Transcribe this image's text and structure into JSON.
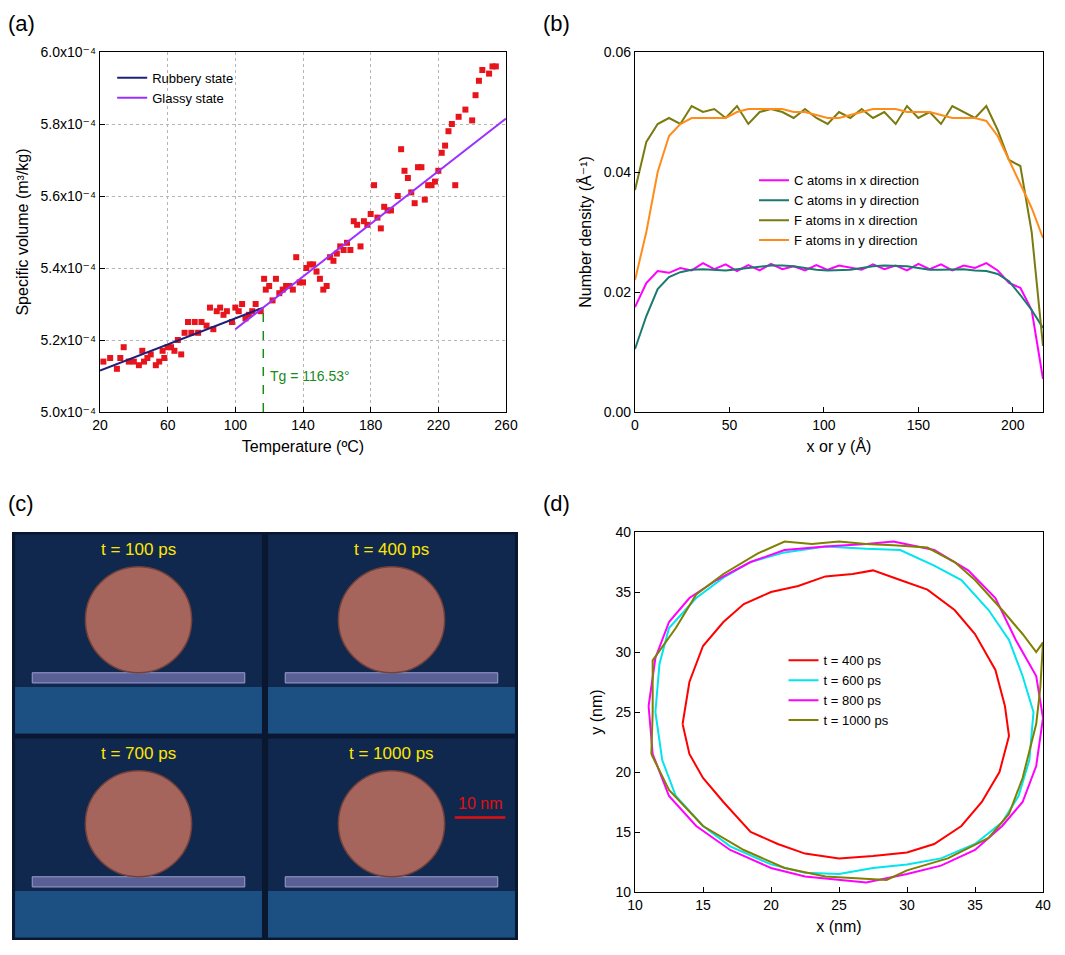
{
  "chart_data": [
    {
      "panel": "(a)",
      "type": "scatter",
      "xlabel": "Temperature (ºC)",
      "ylabel": "Specific volume (m³/kg)",
      "xlim": [
        20,
        260
      ],
      "xticks": [
        20,
        60,
        100,
        140,
        180,
        220,
        260
      ],
      "ylim": [
        0.0005,
        0.0006
      ],
      "yticks": [
        {
          "value": 0.0005,
          "label": "5.0x10⁻⁴"
        },
        {
          "value": 0.00052,
          "label": "5.2x10⁻⁴"
        },
        {
          "value": 0.00054,
          "label": "5.4x10⁻⁴"
        },
        {
          "value": 0.00056,
          "label": "5.6x10⁻⁴"
        },
        {
          "value": 0.00058,
          "label": "5.8x10⁻⁴"
        },
        {
          "value": 0.0006,
          "label": "6.0x10⁻⁴"
        }
      ],
      "grid": true,
      "legend": "upper left",
      "series": [
        {
          "type": "scatter",
          "marker": "square",
          "color": "#e8141c",
          "x": [
            22,
            26,
            30,
            32,
            34,
            37,
            40,
            43,
            45,
            46,
            48,
            50,
            53,
            55,
            57,
            58,
            60,
            62,
            64,
            66,
            68,
            70,
            72,
            74,
            76,
            78,
            80,
            83,
            85,
            87,
            89,
            91,
            93,
            95,
            98,
            100,
            102,
            104,
            106,
            108,
            110,
            112,
            115,
            117,
            118,
            120,
            122,
            124,
            126,
            128,
            130,
            132,
            134,
            136,
            138,
            140,
            142,
            144,
            146,
            148,
            150,
            152,
            154,
            156,
            158,
            160,
            162,
            164,
            166,
            168,
            170,
            172,
            174,
            176,
            178,
            180,
            182,
            184,
            186,
            188,
            190,
            192,
            196,
            198,
            200,
            202,
            204,
            206,
            208,
            210,
            212,
            214,
            216,
            218,
            220,
            222,
            224,
            226,
            228,
            230,
            232,
            236,
            240,
            242,
            244,
            246,
            250,
            252,
            254
          ],
          "values": [
            0.000514,
            0.000515,
            0.000512,
            0.000515,
            0.000518,
            0.000514,
            0.000514,
            0.000513,
            0.000517,
            0.000514,
            0.000515,
            0.000516,
            0.000513,
            0.000514,
            0.000517,
            0.000515,
            0.000518,
            0.000518,
            0.000517,
            0.00052,
            0.000516,
            0.000522,
            0.000525,
            0.000522,
            0.000525,
            0.000522,
            0.000525,
            0.000524,
            0.000529,
            0.000523,
            0.000528,
            0.000529,
            0.000527,
            0.000528,
            0.000525,
            0.000529,
            0.000528,
            0.00053,
            0.000526,
            0.000527,
            0.000528,
            0.00053,
            0.000528,
            0.000537,
            0.000534,
            0.000535,
            0.000531,
            0.000537,
            0.000533,
            0.000534,
            0.000535,
            0.000535,
            0.000534,
            0.000543,
            0.000536,
            0.000536,
            0.00054,
            0.000541,
            0.000541,
            0.000539,
            0.000537,
            0.000534,
            0.000535,
            0.000543,
            0.000542,
            0.000544,
            0.000546,
            0.000545,
            0.000547,
            0.000545,
            0.000553,
            0.000552,
            0.000546,
            0.000553,
            0.000552,
            0.000555,
            0.000563,
            0.000554,
            0.000551,
            0.000557,
            0.000556,
            0.000556,
            0.00056,
            0.000573,
            0.000567,
            0.000565,
            0.000561,
            0.000558,
            0.000568,
            0.000568,
            0.000559,
            0.000563,
            0.000563,
            0.000564,
            0.000567,
            0.000572,
            0.000574,
            0.000578,
            0.00058,
            0.000563,
            0.000582,
            0.000584,
            0.000581,
            0.000588,
            0.000592,
            0.000595,
            0.000594,
            0.000596,
            0.000596
          ]
        },
        {
          "name": "Rubbery state",
          "type": "line",
          "color": "#1f1f7a",
          "x": [
            20,
            116.53
          ],
          "values": [
            0.0005115,
            0.000529
          ]
        },
        {
          "name": "Glassy state",
          "type": "line",
          "color": "#9b30ff",
          "x": [
            100,
            260
          ],
          "values": [
            0.000523,
            0.0005815
          ]
        }
      ],
      "annotations": [
        {
          "text": "Tg = 116.53°",
          "x": 116.53,
          "color": "#1a8a1a",
          "line_style": "dashed"
        }
      ]
    },
    {
      "panel": "(b)",
      "type": "line",
      "xlabel": "x or y (Å)",
      "ylabel": "Number density (Å⁻¹)",
      "xlim": [
        0,
        216
      ],
      "xticks": [
        0,
        50,
        100,
        150,
        200
      ],
      "ylim": [
        0,
        0.06
      ],
      "yticks": [
        {
          "value": 0,
          "label": "0.00"
        },
        {
          "value": 0.02,
          "label": "0.02"
        },
        {
          "value": 0.04,
          "label": "0.04"
        },
        {
          "value": 0.06,
          "label": "0.06"
        }
      ],
      "grid": false,
      "legend": "center",
      "x": [
        0,
        6,
        12,
        18,
        24,
        30,
        36,
        42,
        48,
        54,
        60,
        66,
        72,
        78,
        84,
        90,
        96,
        102,
        108,
        114,
        120,
        126,
        132,
        138,
        144,
        150,
        156,
        162,
        168,
        174,
        180,
        186,
        192,
        198,
        204,
        210,
        216
      ],
      "series": [
        {
          "name": "C atoms in x direction",
          "color": "#ff00ff",
          "values": [
            0.0175,
            0.0215,
            0.0235,
            0.0232,
            0.024,
            0.0236,
            0.0248,
            0.0238,
            0.0246,
            0.0235,
            0.0245,
            0.0236,
            0.0247,
            0.0238,
            0.0243,
            0.0236,
            0.0245,
            0.0237,
            0.0244,
            0.024,
            0.0237,
            0.0246,
            0.0238,
            0.0244,
            0.0236,
            0.0247,
            0.0238,
            0.0246,
            0.0236,
            0.0244,
            0.024,
            0.0248,
            0.0236,
            0.0215,
            0.0207,
            0.017,
            0.0055
          ]
        },
        {
          "name": "C atoms in y direction",
          "color": "#1a7a6e",
          "values": [
            0.0105,
            0.016,
            0.0205,
            0.0225,
            0.0233,
            0.0237,
            0.0238,
            0.0237,
            0.0236,
            0.0238,
            0.024,
            0.0242,
            0.0244,
            0.0244,
            0.0243,
            0.024,
            0.0237,
            0.0236,
            0.0236,
            0.0237,
            0.024,
            0.0243,
            0.0244,
            0.0244,
            0.0243,
            0.024,
            0.0237,
            0.0237,
            0.0238,
            0.0238,
            0.0236,
            0.0235,
            0.023,
            0.0218,
            0.0195,
            0.017,
            0.014
          ]
        },
        {
          "name": "F atoms in x direction",
          "color": "#7a7a10",
          "values": [
            0.037,
            0.045,
            0.048,
            0.049,
            0.048,
            0.051,
            0.05,
            0.0505,
            0.049,
            0.051,
            0.048,
            0.05,
            0.0505,
            0.05,
            0.049,
            0.0505,
            0.049,
            0.048,
            0.05,
            0.049,
            0.0505,
            0.049,
            0.05,
            0.048,
            0.051,
            0.049,
            0.05,
            0.048,
            0.051,
            0.05,
            0.049,
            0.051,
            0.047,
            0.042,
            0.041,
            0.03,
            0.011
          ]
        },
        {
          "name": "F atoms in y direction",
          "color": "#ff8c1a",
          "values": [
            0.022,
            0.03,
            0.04,
            0.046,
            0.048,
            0.049,
            0.049,
            0.049,
            0.049,
            0.05,
            0.0505,
            0.0505,
            0.0505,
            0.0505,
            0.05,
            0.05,
            0.0495,
            0.049,
            0.049,
            0.0495,
            0.05,
            0.0505,
            0.0505,
            0.0505,
            0.05,
            0.05,
            0.05,
            0.0495,
            0.049,
            0.049,
            0.049,
            0.0485,
            0.046,
            0.042,
            0.038,
            0.034,
            0.029
          ]
        }
      ]
    },
    {
      "panel": "(c)",
      "type": "image",
      "labels": [
        "t = 100 ps",
        "t = 400 ps",
        "t = 700 ps",
        "t = 1000 ps"
      ],
      "scale_bar": "10 nm"
    },
    {
      "panel": "(d)",
      "type": "line",
      "xlabel": "x (nm)",
      "ylabel": "y (nm)",
      "xlim": [
        10,
        40
      ],
      "xticks": [
        10,
        15,
        20,
        25,
        30,
        35,
        40
      ],
      "ylim": [
        10,
        40
      ],
      "yticks": [
        10,
        15,
        20,
        25,
        30,
        35,
        40
      ],
      "grid": false,
      "legend": "center",
      "series": [
        {
          "name": "t = 400 ps",
          "color": "#ff0000",
          "x": [
            13.5,
            14,
            15,
            16.5,
            18,
            20,
            22,
            24,
            26,
            27.5,
            29.5,
            31.5,
            33.5,
            35,
            36.5,
            37.2,
            37.5,
            36.8,
            35.5,
            34,
            32,
            30,
            27.5,
            25,
            22.5,
            20.5,
            18.5,
            16.5,
            15,
            14,
            13.5
          ],
          "values": [
            24,
            27.5,
            30.5,
            32.5,
            34,
            35,
            35.5,
            36.3,
            36.5,
            36.8,
            36,
            35.2,
            33.5,
            31.5,
            28.5,
            25.5,
            23,
            20,
            17.5,
            15.5,
            14,
            13.3,
            13,
            12.8,
            13.2,
            14,
            15,
            17.5,
            19.5,
            21.5,
            24
          ]
        },
        {
          "name": "t = 600 ps",
          "color": "#00e5ee",
          "x": [
            11.5,
            11.8,
            12.5,
            14.5,
            16.5,
            18.5,
            21,
            24,
            27,
            29.5,
            32,
            34,
            36,
            37.5,
            38.5,
            39.3,
            39,
            38.2,
            37,
            35,
            32.5,
            30,
            27.5,
            25,
            22.5,
            20,
            17,
            15,
            13,
            12,
            11.5
          ],
          "values": [
            25,
            29,
            32,
            34.5,
            36.2,
            37.5,
            38.3,
            38.8,
            38.6,
            38.5,
            37.2,
            36,
            33.5,
            31,
            28,
            25,
            21,
            18,
            15.8,
            14,
            12.8,
            12.3,
            12,
            11.5,
            11.6,
            12.3,
            13.8,
            15.5,
            18,
            21,
            25
          ]
        },
        {
          "name": "t = 800 ps",
          "color": "#ff00ff",
          "x": [
            11,
            11.5,
            12.5,
            14,
            16,
            18.5,
            21,
            24,
            27,
            29,
            32,
            34.5,
            36.5,
            38,
            39.5,
            40,
            39.5,
            38.5,
            37,
            35,
            32.5,
            30,
            27,
            25,
            22.5,
            20,
            17,
            14.5,
            12.5,
            11.3,
            11
          ],
          "values": [
            25.5,
            29.5,
            32.5,
            34.5,
            36,
            37.5,
            38.5,
            38.8,
            39,
            39.2,
            38.5,
            36.8,
            34.5,
            31,
            28,
            24.5,
            20.5,
            17.5,
            15.5,
            13.5,
            12.2,
            11.5,
            10.8,
            11,
            11.3,
            12,
            13.5,
            15.5,
            18,
            21.5,
            25.5
          ]
        },
        {
          "name": "t = 1000 ps",
          "color": "#808000",
          "x": [
            11.2,
            11.3,
            11.3,
            13,
            14.5,
            16.5,
            19,
            21,
            23,
            25,
            27,
            29,
            31.5,
            33.5,
            35,
            37,
            38.5,
            39.5,
            40,
            39.8,
            39.5,
            38.5,
            37.5,
            36,
            33,
            30,
            28.5,
            26,
            24,
            21,
            18,
            15,
            12.5,
            11.2
          ],
          "values": [
            21.5,
            25,
            29.3,
            32,
            34.8,
            36.5,
            38.2,
            39.2,
            39,
            39.2,
            39,
            38.9,
            38.7,
            37.5,
            36,
            33.5,
            31.5,
            30,
            30.8,
            27,
            24,
            19.5,
            16.5,
            14.5,
            12.8,
            11.8,
            11,
            11.2,
            11.3,
            12,
            13.5,
            15.5,
            18.5,
            21.5
          ]
        }
      ]
    }
  ]
}
